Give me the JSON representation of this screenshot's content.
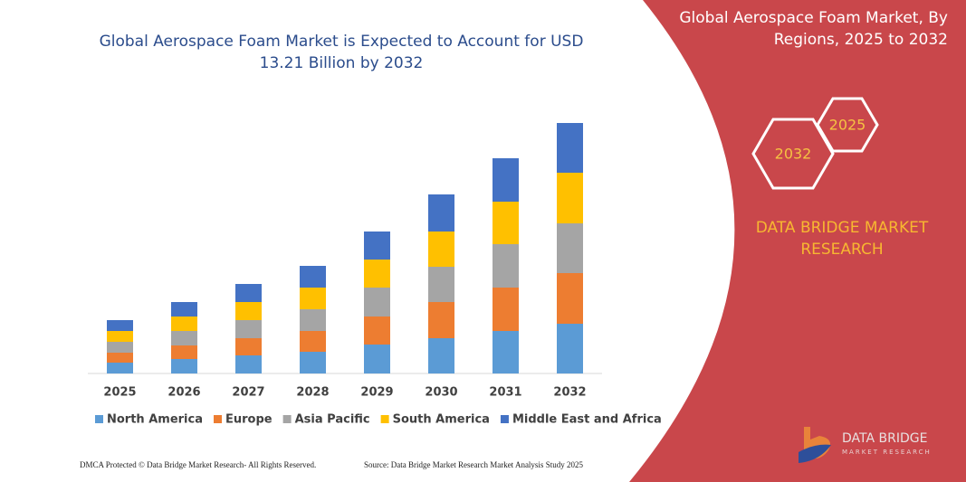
{
  "chart_data": {
    "type": "stacked-bar",
    "title": "Global Aerospace Foam Market is Expected to Account for USD 13.21 Billion by 2032",
    "categories": [
      "2025",
      "2026",
      "2027",
      "2028",
      "2029",
      "2030",
      "2031",
      "2032"
    ],
    "series": [
      {
        "name": "North America",
        "color": "#5b9bd5",
        "values": [
          12,
          16,
          20,
          24,
          32,
          39,
          47,
          55
        ]
      },
      {
        "name": "Europe",
        "color": "#ed7d31",
        "values": [
          11,
          15,
          19,
          23,
          31,
          40,
          48,
          56
        ]
      },
      {
        "name": "Asia Pacific",
        "color": "#a5a5a5",
        "values": [
          12,
          16,
          20,
          24,
          32,
          39,
          48,
          55
        ]
      },
      {
        "name": "South America",
        "color": "#ffc000",
        "values": [
          12,
          16,
          20,
          24,
          31,
          39,
          47,
          56
        ]
      },
      {
        "name": "Middle East and Africa",
        "color": "#4472c4",
        "values": [
          12,
          16,
          20,
          24,
          31,
          41,
          48,
          55
        ]
      }
    ],
    "ylim": [
      0,
      300
    ]
  },
  "panel": {
    "title": "Global Aerospace Foam Market, By Regions, 2025 to 2032",
    "hexagons": [
      "2025",
      "2032"
    ],
    "brand": "DATA BRIDGE MARKET RESEARCH"
  },
  "logo": {
    "name": "DATA BRIDGE",
    "tagline": "MARKET RESEARCH"
  },
  "footer": {
    "left": "DMCA Protected © Data Bridge Market Research-  All Rights Reserved.",
    "right": "Source: Data Bridge Market Research  Market Analysis Study 2025"
  }
}
